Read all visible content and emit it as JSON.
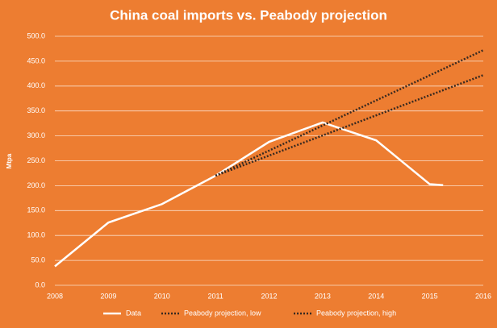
{
  "chart_data": {
    "type": "line",
    "title": "China coal imports vs. Peabody projection",
    "y_label": "Mtpa",
    "xlim": [
      2008,
      2016
    ],
    "xticks": [
      2008,
      2009,
      2010,
      2011,
      2012,
      2013,
      2014,
      2015,
      2016
    ],
    "ylim": [
      0,
      500
    ],
    "yticks": [
      {
        "value": 0,
        "label": "0.0"
      },
      {
        "value": 50,
        "label": "50.0"
      },
      {
        "value": 100,
        "label": "100.0"
      },
      {
        "value": 150,
        "label": "150.0"
      },
      {
        "value": 200,
        "label": "200.0"
      },
      {
        "value": 250,
        "label": "250.0"
      },
      {
        "value": 300,
        "label": "300.0"
      },
      {
        "value": 350,
        "label": "350.0"
      },
      {
        "value": 400,
        "label": "400.0"
      },
      {
        "value": 450,
        "label": "450.0"
      },
      {
        "value": 500,
        "label": "500.0"
      }
    ],
    "grid": true,
    "legend": "bottom",
    "series": [
      {
        "name": "Data",
        "color": "#ffffff",
        "style": "solid",
        "x": [
          2008,
          2009,
          2010,
          2011,
          2012,
          2013,
          2014,
          2015,
          2015.25
        ],
        "values": [
          38,
          126,
          163,
          220,
          288,
          327,
          291,
          203,
          201
        ]
      },
      {
        "name": "Peabody projection, low",
        "color": "#3a2a20",
        "style": "dotted",
        "x": [
          2011,
          2016
        ],
        "values": [
          220,
          422
        ]
      },
      {
        "name": "Peabody projection, high",
        "color": "#3a2a20",
        "style": "dotted",
        "x": [
          2011,
          2016
        ],
        "values": [
          220,
          472
        ]
      }
    ]
  }
}
